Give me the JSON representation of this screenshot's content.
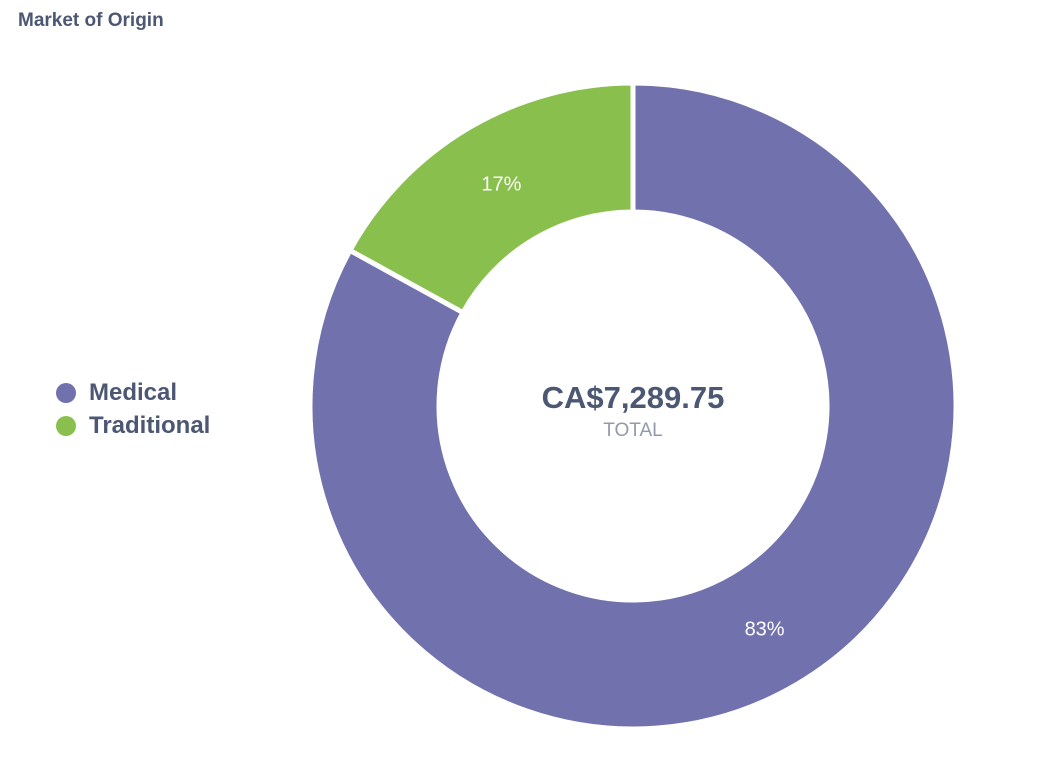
{
  "card": {
    "title": "Market of Origin"
  },
  "chart_data": {
    "type": "pie",
    "categories": [
      "Medical",
      "Traditional"
    ],
    "values": [
      83,
      17
    ],
    "value_unit": "%",
    "colors": [
      "#7172ad",
      "#89bf4d"
    ],
    "center": {
      "value": "CA$7,289.75",
      "caption": "TOTAL"
    },
    "legend_position": "left"
  }
}
